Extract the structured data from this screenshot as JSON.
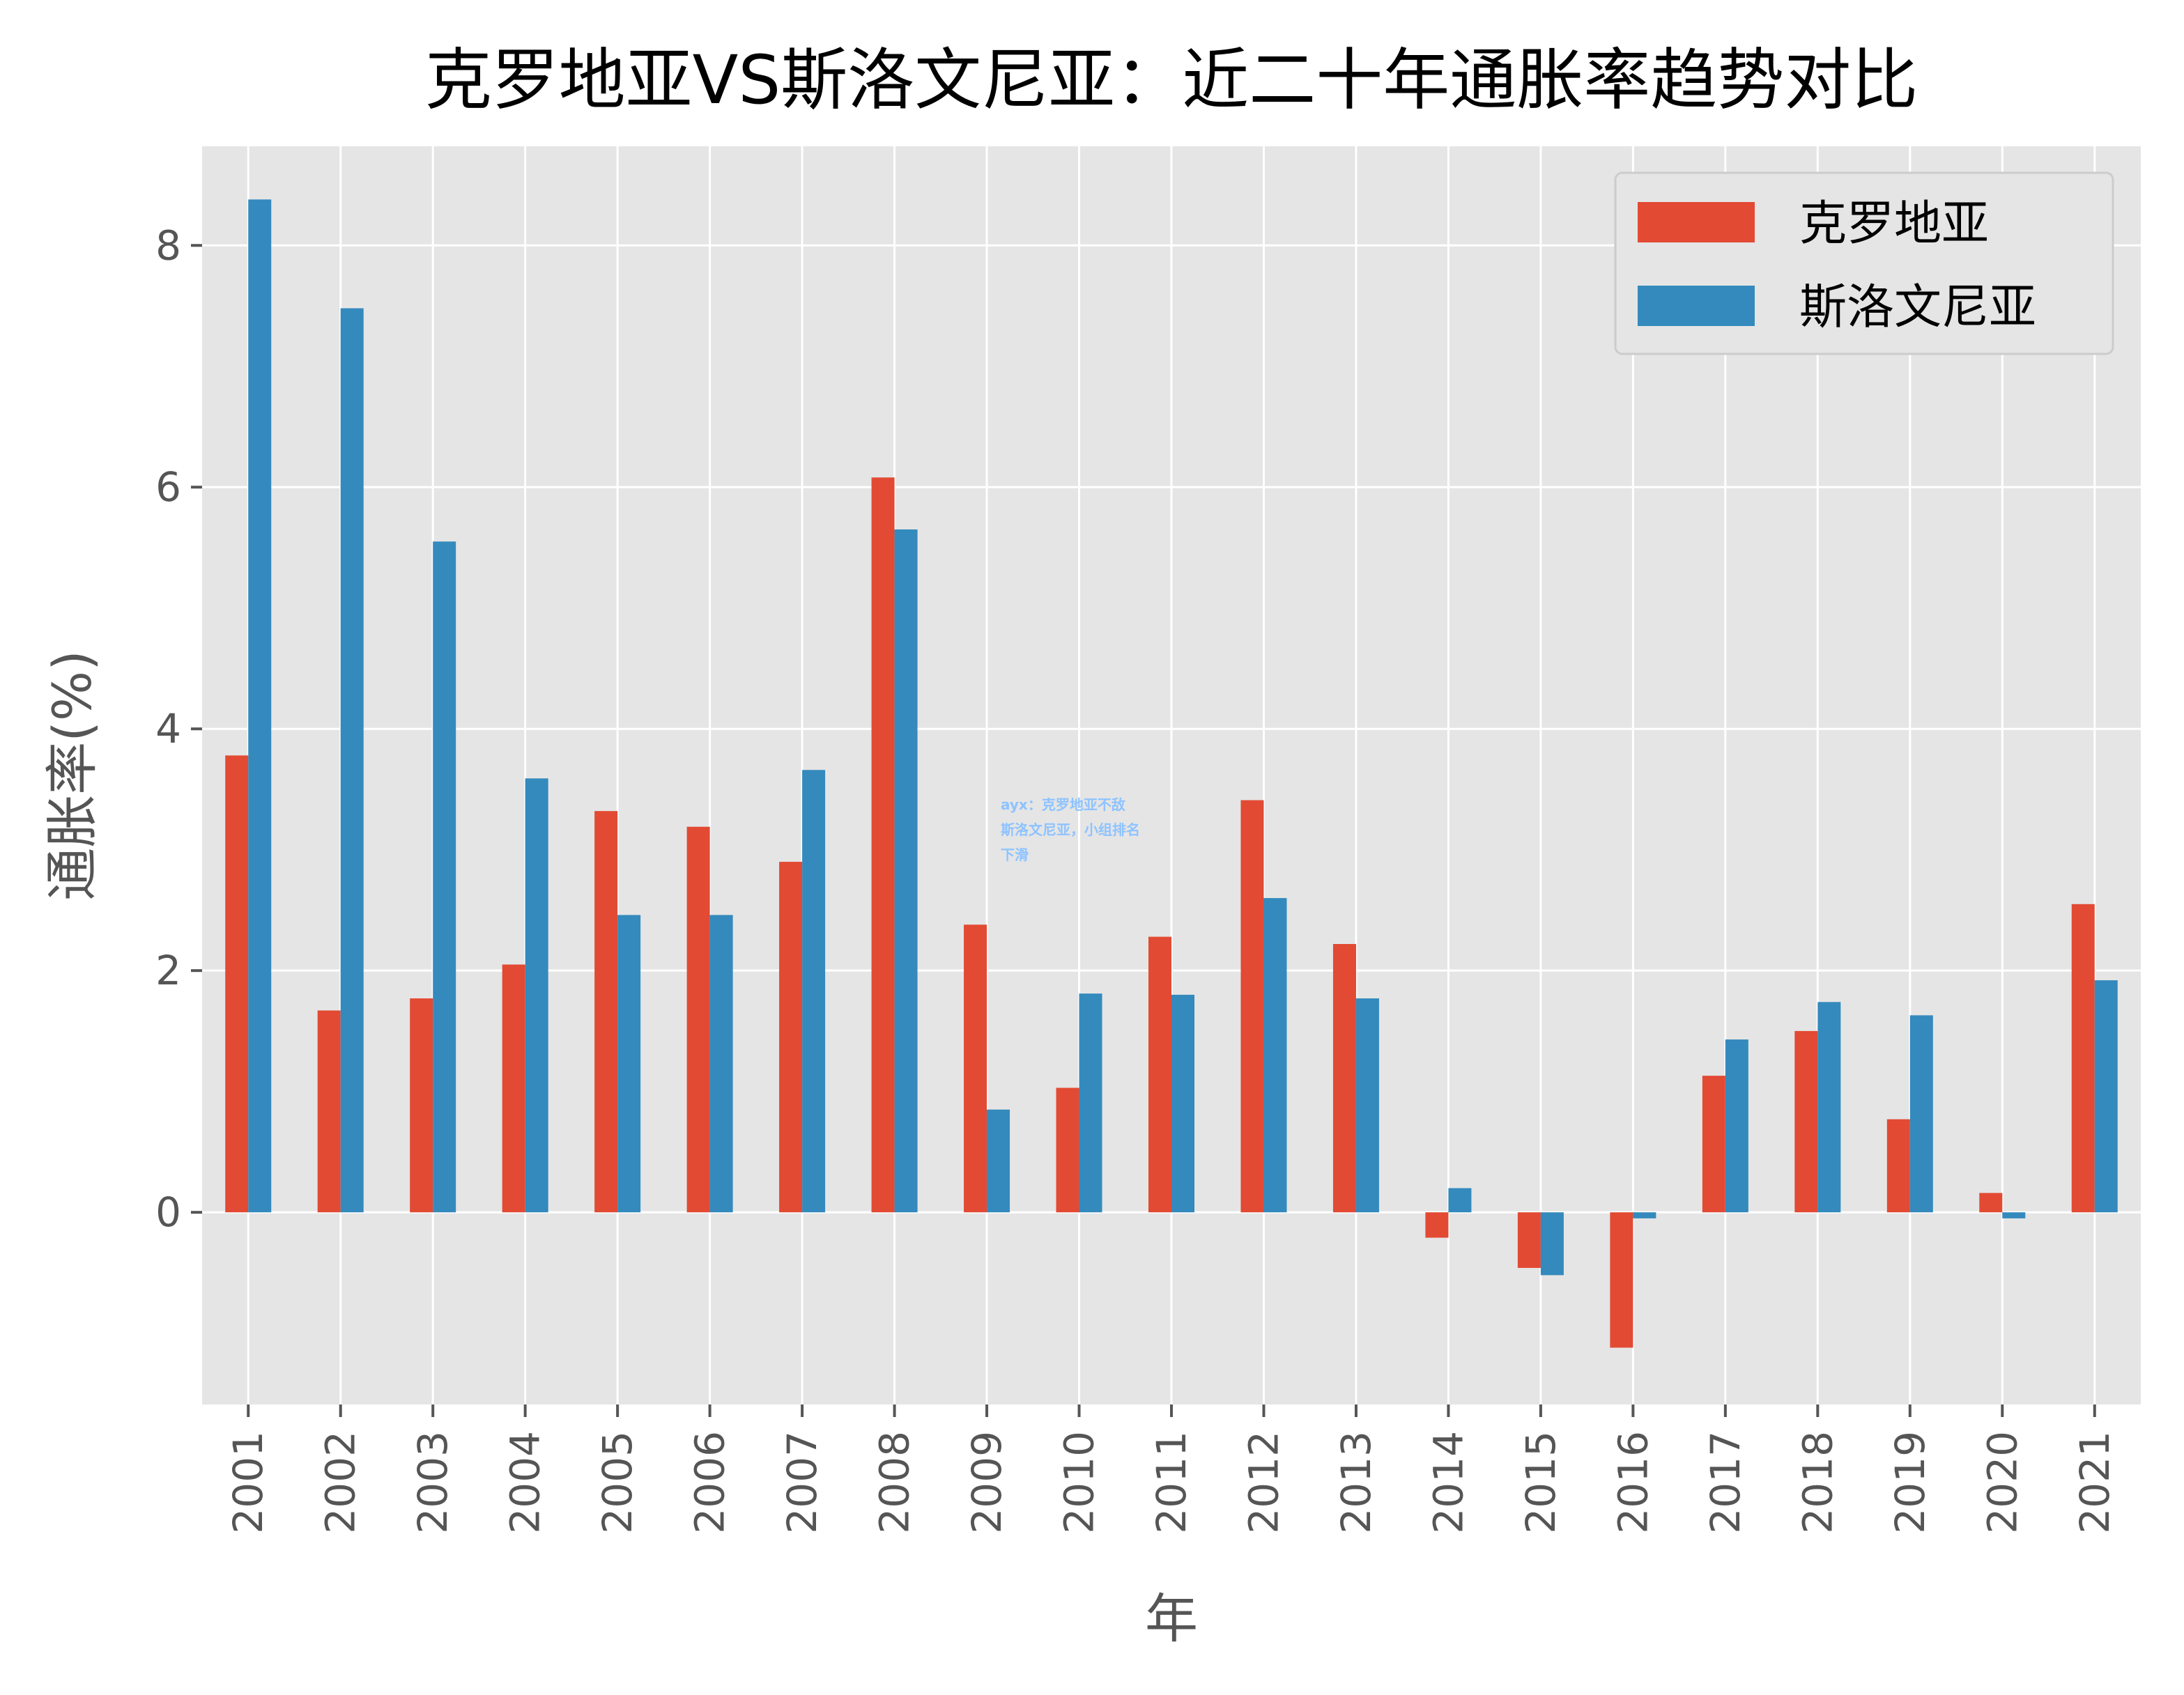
{
  "chart_data": {
    "type": "bar",
    "title": "克罗地亚VS斯洛文尼亚：近二十年通胀率趋势对比",
    "xlabel": "年",
    "ylabel": "通胀率(%)",
    "categories": [
      "2001",
      "2002",
      "2003",
      "2004",
      "2005",
      "2006",
      "2007",
      "2008",
      "2009",
      "2010",
      "2011",
      "2012",
      "2013",
      "2014",
      "2015",
      "2016",
      "2017",
      "2018",
      "2019",
      "2020",
      "2021"
    ],
    "series": [
      {
        "name": "克罗地亚",
        "color": "#E24A33",
        "values": [
          3.78,
          1.67,
          1.77,
          2.05,
          3.32,
          3.19,
          2.9,
          6.08,
          2.38,
          1.03,
          2.28,
          3.41,
          2.22,
          -0.21,
          -0.46,
          -1.12,
          1.13,
          1.5,
          0.77,
          0.16,
          2.55
        ]
      },
      {
        "name": "斯洛文尼亚",
        "color": "#348ABD",
        "values": [
          8.38,
          7.48,
          5.55,
          3.59,
          2.46,
          2.46,
          3.66,
          5.65,
          0.85,
          1.81,
          1.8,
          2.6,
          1.77,
          0.2,
          -0.52,
          -0.05,
          1.43,
          1.74,
          1.63,
          -0.05,
          1.92
        ]
      }
    ],
    "yticks": [
      0,
      2,
      4,
      6,
      8
    ],
    "ylim": [
      -1.59,
      8.82
    ],
    "grid": true,
    "legend": "top-right",
    "background": "#E5E5E5",
    "grid_color": "#FFFFFF"
  },
  "watermark": {
    "lines": [
      "ayx：克罗地亚不敌",
      "斯洛文尼亚，小组排名",
      "下滑"
    ]
  }
}
